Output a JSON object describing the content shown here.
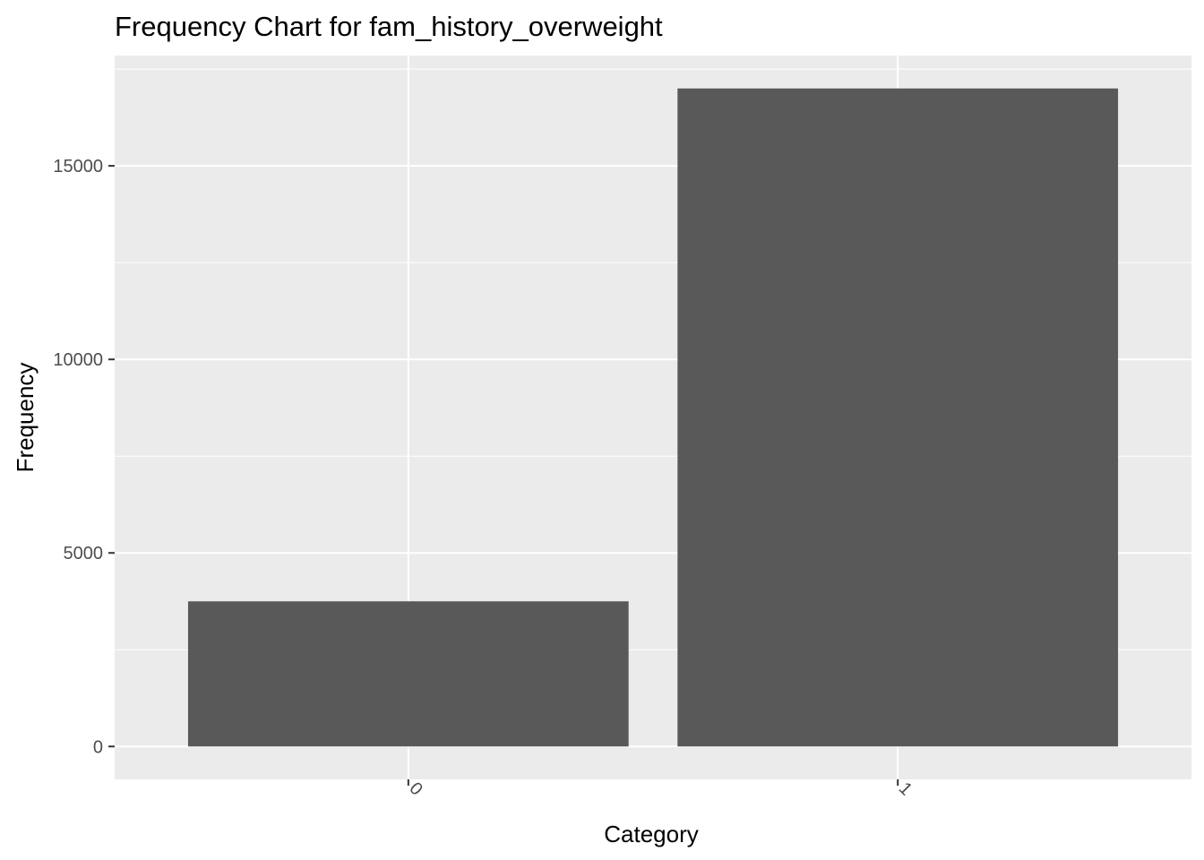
{
  "chart_data": {
    "type": "bar",
    "title": "Frequency Chart for fam_history_overweight",
    "xlabel": "Category",
    "ylabel": "Frequency",
    "categories": [
      "0",
      "1"
    ],
    "values": [
      3750,
      17000
    ],
    "ylim": [
      -850,
      17850
    ],
    "yticks": [
      0,
      5000,
      10000,
      15000
    ],
    "ytick_labels": [
      "0",
      "5000",
      "10000",
      "15000"
    ],
    "grid": true,
    "x_tick_rotation_deg": 45,
    "colors": {
      "panel_background": "#ebebeb",
      "grid": "#ffffff",
      "bar_fill": "#595959",
      "tick_label": "#4d4d4d",
      "tick_mark": "#333333",
      "text": "#000000"
    }
  }
}
